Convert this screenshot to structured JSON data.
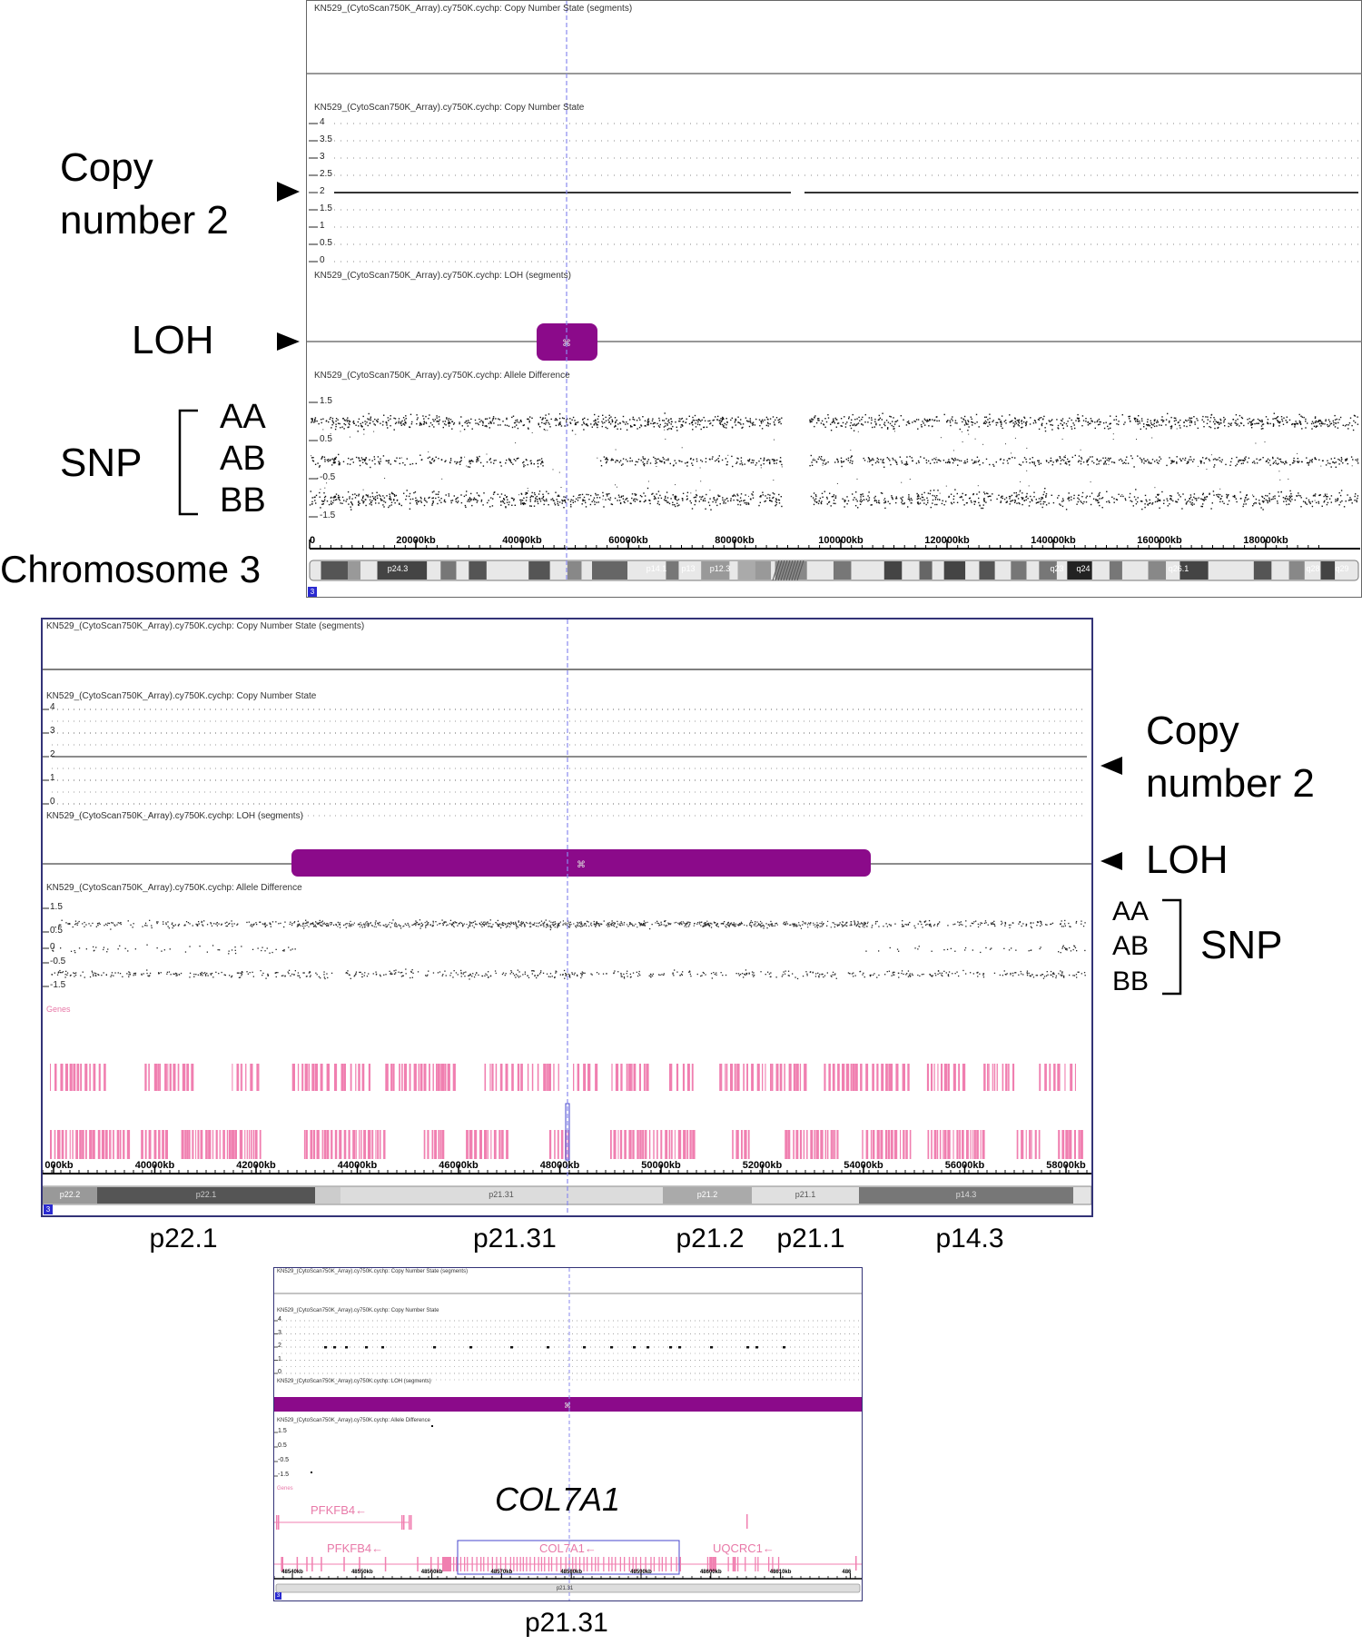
{
  "panel1": {
    "track_cn_segments": "KN529_(CytoScan750K_Array).cy750K.cychp: Copy Number State (segments)",
    "track_cn_state": "KN529_(CytoScan750K_Array).cy750K.cychp: Copy Number State",
    "track_loh": "KN529_(CytoScan750K_Array).cy750K.cychp: LOH (segments)",
    "track_allele": "KN529_(CytoScan750K_Array).cy750K.cychp: Allele Difference",
    "cn_ticks": [
      "4",
      "3.5",
      "3",
      "2.5",
      "2",
      "1.5",
      "1",
      "0.5",
      "0"
    ],
    "allele_ticks": [
      "1.5",
      "0.5",
      "-0.5",
      "-1.5"
    ],
    "axis_ticks": [
      "0",
      "20000kb",
      "40000kb",
      "60000kb",
      "80000kb",
      "100000kb",
      "120000kb",
      "140000kb",
      "160000kb",
      "180000kb"
    ],
    "bands": [
      "p24.3",
      "p14.1",
      "p13",
      "p12.3",
      "q23",
      "q24",
      "q26.1",
      "q28",
      "q29"
    ],
    "corner": "3"
  },
  "panel2": {
    "track_cn_segments": "KN529_(CytoScan750K_Array).cy750K.cychp: Copy Number State (segments)",
    "track_cn_state": "KN529_(CytoScan750K_Array).cy750K.cychp: Copy Number State",
    "track_loh": "KN529_(CytoScan750K_Array).cy750K.cychp: LOH (segments)",
    "track_allele": "KN529_(CytoScan750K_Array).cy750K.cychp: Allele Difference",
    "track_genes": "Genes",
    "cn_ticks": [
      "4",
      "3",
      "2",
      "1",
      "0"
    ],
    "allele_ticks": [
      "1.5",
      "0.5",
      "0",
      "-0.5",
      "-1.5"
    ],
    "axis_ticks": [
      "000kb",
      "40000kb",
      "42000kb",
      "44000kb",
      "46000kb",
      "48000kb",
      "50000kb",
      "52000kb",
      "54000kb",
      "56000kb",
      "58000kb"
    ],
    "bands": [
      "p22.2",
      "p22.1",
      "p21.31",
      "p21.2",
      "p21.1",
      "p14.3"
    ],
    "corner": "3"
  },
  "panel3": {
    "track_cn_segments": "KN529_(CytoScan750K_Array).cy750K.cychp: Copy Number State (segments)",
    "track_cn_state": "KN529_(CytoScan750K_Array).cy750K.cychp: Copy Number State",
    "track_loh": "KN529_(CytoScan750K_Array).cy750K.cychp: LOH (segments)",
    "track_allele": "KN529_(CytoScan750K_Array).cy750K.cychp: Allele Difference",
    "track_genes": "Genes",
    "cn_ticks": [
      "4",
      "3",
      "2",
      "1",
      "0"
    ],
    "allele_ticks": [
      "1.5",
      "0.5",
      "-0.5",
      "-1.5"
    ],
    "genes": [
      "PFKFB4←",
      "PFKFB4←",
      "COL7A1←",
      "UQCRC1←"
    ],
    "axis_ticks": [
      "48540kb",
      "48550kb",
      "48560kb",
      "48570kb",
      "48580kb",
      "48590kb",
      "48600kb",
      "48610kb",
      "486"
    ],
    "bands": [
      "p21.31"
    ],
    "corner": "3"
  },
  "annotations": {
    "copy_number_2_a": "Copy",
    "copy_number_2_b": "number 2",
    "loh": "LOH",
    "snp": "SNP",
    "aa": "AA",
    "ab": "AB",
    "bb": "BB",
    "chromosome": "Chromosome 3",
    "copy_number_2_right_a": "Copy",
    "copy_number_2_right_b": "number 2",
    "loh_right": "LOH",
    "aa_right": "AA",
    "ab_right": "AB",
    "bb_right": "BB",
    "snp_right": "SNP",
    "band_labels": [
      "p22.1",
      "p21.31",
      "p21.2",
      "p21.1",
      "p14.3"
    ],
    "gene_title": "COL7A1",
    "bottom_band": "p21.31"
  },
  "colors": {
    "loh": "#8b0a8a",
    "gene": "#f07fb0",
    "cursor": "#8a8aee",
    "panel_border": "#333377"
  }
}
